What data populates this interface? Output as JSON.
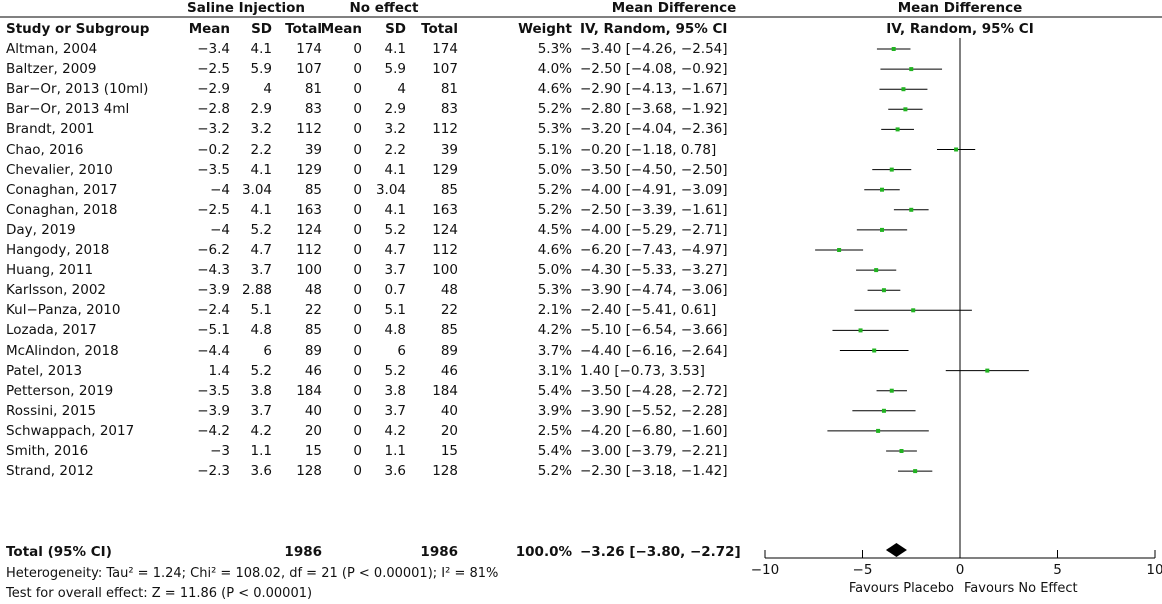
{
  "header": {
    "group_experimental": "Saline Injection",
    "group_control": "No effect",
    "col_md": "Mean Difference",
    "col_plot": "Mean Difference",
    "col_study": "Study or Subgroup",
    "col_mean": "Mean",
    "col_sd": "SD",
    "col_total": "Total",
    "col_mean2": "Mean",
    "col_sd2": "SD",
    "col_total2": "Total",
    "col_weight": "Weight",
    "col_md_method": "IV, Random, 95% CI",
    "col_plot_method": "IV, Random, 95% CI"
  },
  "studies": [
    {
      "study": "Altman, 2004",
      "e_mean": "−3.4",
      "e_sd": "4.1",
      "e_total": "174",
      "c_mean": "0",
      "c_sd": "4.1",
      "c_total": "174",
      "weight": "5.3%",
      "md_text": "−3.40 [−4.26, −2.54]"
    },
    {
      "study": "Baltzer, 2009",
      "e_mean": "−2.5",
      "e_sd": "5.9",
      "e_total": "107",
      "c_mean": "0",
      "c_sd": "5.9",
      "c_total": "107",
      "weight": "4.0%",
      "md_text": "−2.50 [−4.08, −0.92]"
    },
    {
      "study": "Bar−Or, 2013 (10ml)",
      "e_mean": "−2.9",
      "e_sd": "4",
      "e_total": "81",
      "c_mean": "0",
      "c_sd": "4",
      "c_total": "81",
      "weight": "4.6%",
      "md_text": "−2.90 [−4.13, −1.67]"
    },
    {
      "study": "Bar−Or, 2013 4ml",
      "e_mean": "−2.8",
      "e_sd": "2.9",
      "e_total": "83",
      "c_mean": "0",
      "c_sd": "2.9",
      "c_total": "83",
      "weight": "5.2%",
      "md_text": "−2.80 [−3.68, −1.92]"
    },
    {
      "study": "Brandt, 2001",
      "e_mean": "−3.2",
      "e_sd": "3.2",
      "e_total": "112",
      "c_mean": "0",
      "c_sd": "3.2",
      "c_total": "112",
      "weight": "5.3%",
      "md_text": "−3.20 [−4.04, −2.36]"
    },
    {
      "study": "Chao, 2016",
      "e_mean": "−0.2",
      "e_sd": "2.2",
      "e_total": "39",
      "c_mean": "0",
      "c_sd": "2.2",
      "c_total": "39",
      "weight": "5.1%",
      "md_text": "−0.20 [−1.18, 0.78]"
    },
    {
      "study": "Chevalier, 2010",
      "e_mean": "−3.5",
      "e_sd": "4.1",
      "e_total": "129",
      "c_mean": "0",
      "c_sd": "4.1",
      "c_total": "129",
      "weight": "5.0%",
      "md_text": "−3.50 [−4.50, −2.50]"
    },
    {
      "study": "Conaghan, 2017",
      "e_mean": "−4",
      "e_sd": "3.04",
      "e_total": "85",
      "c_mean": "0",
      "c_sd": "3.04",
      "c_total": "85",
      "weight": "5.2%",
      "md_text": "−4.00 [−4.91, −3.09]"
    },
    {
      "study": "Conaghan, 2018",
      "e_mean": "−2.5",
      "e_sd": "4.1",
      "e_total": "163",
      "c_mean": "0",
      "c_sd": "4.1",
      "c_total": "163",
      "weight": "5.2%",
      "md_text": "−2.50 [−3.39, −1.61]"
    },
    {
      "study": "Day, 2019",
      "e_mean": "−4",
      "e_sd": "5.2",
      "e_total": "124",
      "c_mean": "0",
      "c_sd": "5.2",
      "c_total": "124",
      "weight": "4.5%",
      "md_text": "−4.00 [−5.29, −2.71]"
    },
    {
      "study": "Hangody, 2018",
      "e_mean": "−6.2",
      "e_sd": "4.7",
      "e_total": "112",
      "c_mean": "0",
      "c_sd": "4.7",
      "c_total": "112",
      "weight": "4.6%",
      "md_text": "−6.20 [−7.43, −4.97]"
    },
    {
      "study": "Huang, 2011",
      "e_mean": "−4.3",
      "e_sd": "3.7",
      "e_total": "100",
      "c_mean": "0",
      "c_sd": "3.7",
      "c_total": "100",
      "weight": "5.0%",
      "md_text": "−4.30 [−5.33, −3.27]"
    },
    {
      "study": "Karlsson, 2002",
      "e_mean": "−3.9",
      "e_sd": "2.88",
      "e_total": "48",
      "c_mean": "0",
      "c_sd": "0.7",
      "c_total": "48",
      "weight": "5.3%",
      "md_text": "−3.90 [−4.74, −3.06]"
    },
    {
      "study": "Kul−Panza, 2010",
      "e_mean": "−2.4",
      "e_sd": "5.1",
      "e_total": "22",
      "c_mean": "0",
      "c_sd": "5.1",
      "c_total": "22",
      "weight": "2.1%",
      "md_text": "−2.40 [−5.41, 0.61]"
    },
    {
      "study": "Lozada, 2017",
      "e_mean": "−5.1",
      "e_sd": "4.8",
      "e_total": "85",
      "c_mean": "0",
      "c_sd": "4.8",
      "c_total": "85",
      "weight": "4.2%",
      "md_text": "−5.10 [−6.54, −3.66]"
    },
    {
      "study": "McAlindon, 2018",
      "e_mean": "−4.4",
      "e_sd": "6",
      "e_total": "89",
      "c_mean": "0",
      "c_sd": "6",
      "c_total": "89",
      "weight": "3.7%",
      "md_text": "−4.40 [−6.16, −2.64]"
    },
    {
      "study": "Patel, 2013",
      "e_mean": "1.4",
      "e_sd": "5.2",
      "e_total": "46",
      "c_mean": "0",
      "c_sd": "5.2",
      "c_total": "46",
      "weight": "3.1%",
      "md_text": "1.40 [−0.73, 3.53]"
    },
    {
      "study": "Petterson, 2019",
      "e_mean": "−3.5",
      "e_sd": "3.8",
      "e_total": "184",
      "c_mean": "0",
      "c_sd": "3.8",
      "c_total": "184",
      "weight": "5.4%",
      "md_text": "−3.50 [−4.28, −2.72]"
    },
    {
      "study": "Rossini, 2015",
      "e_mean": "−3.9",
      "e_sd": "3.7",
      "e_total": "40",
      "c_mean": "0",
      "c_sd": "3.7",
      "c_total": "40",
      "weight": "3.9%",
      "md_text": "−3.90 [−5.52, −2.28]"
    },
    {
      "study": "Schwappach, 2017",
      "e_mean": "−4.2",
      "e_sd": "4.2",
      "e_total": "20",
      "c_mean": "0",
      "c_sd": "4.2",
      "c_total": "20",
      "weight": "2.5%",
      "md_text": "−4.20 [−6.80, −1.60]"
    },
    {
      "study": "Smith, 2016",
      "e_mean": "−3",
      "e_sd": "1.1",
      "e_total": "15",
      "c_mean": "0",
      "c_sd": "1.1",
      "c_total": "15",
      "weight": "5.4%",
      "md_text": "−3.00 [−3.79, −2.21]"
    },
    {
      "study": "Strand, 2012",
      "e_mean": "−2.3",
      "e_sd": "3.6",
      "e_total": "128",
      "c_mean": "0",
      "c_sd": "3.6",
      "c_total": "128",
      "weight": "5.2%",
      "md_text": "−2.30 [−3.18, −1.42]"
    }
  ],
  "total": {
    "label": "Total (95% CI)",
    "e_total": "1986",
    "c_total": "1986",
    "weight": "100.0%",
    "md_text": "−3.26 [−3.80, −2.72]"
  },
  "footer": {
    "heterogeneity": "Heterogeneity: Tau² = 1.24; Chi² = 108.02, df = 21 (P < 0.00001); I² = 81%",
    "overall": "Test for overall effect: Z = 11.86 (P < 0.00001)"
  },
  "chart_data": {
    "type": "scatter",
    "x_range": [
      -10,
      10
    ],
    "ticks": [
      -10,
      -5,
      0,
      5,
      10
    ],
    "tick_labels": [
      "−10",
      "−5",
      "0",
      "5",
      "10"
    ],
    "favours_left": "Favours Placebo",
    "favours_right": "Favours No Effect",
    "point_color": "#21b321",
    "points": [
      {
        "md": -3.4,
        "lo": -4.26,
        "hi": -2.54
      },
      {
        "md": -2.5,
        "lo": -4.08,
        "hi": -0.92
      },
      {
        "md": -2.9,
        "lo": -4.13,
        "hi": -1.67
      },
      {
        "md": -2.8,
        "lo": -3.68,
        "hi": -1.92
      },
      {
        "md": -3.2,
        "lo": -4.04,
        "hi": -2.36
      },
      {
        "md": -0.2,
        "lo": -1.18,
        "hi": 0.78
      },
      {
        "md": -3.5,
        "lo": -4.5,
        "hi": -2.5
      },
      {
        "md": -4.0,
        "lo": -4.91,
        "hi": -3.09
      },
      {
        "md": -2.5,
        "lo": -3.39,
        "hi": -1.61
      },
      {
        "md": -4.0,
        "lo": -5.29,
        "hi": -2.71
      },
      {
        "md": -6.2,
        "lo": -7.43,
        "hi": -4.97
      },
      {
        "md": -4.3,
        "lo": -5.33,
        "hi": -3.27
      },
      {
        "md": -3.9,
        "lo": -4.74,
        "hi": -3.06
      },
      {
        "md": -2.4,
        "lo": -5.41,
        "hi": 0.61
      },
      {
        "md": -5.1,
        "lo": -6.54,
        "hi": -3.66
      },
      {
        "md": -4.4,
        "lo": -6.16,
        "hi": -2.64
      },
      {
        "md": 1.4,
        "lo": -0.73,
        "hi": 3.53
      },
      {
        "md": -3.5,
        "lo": -4.28,
        "hi": -2.72
      },
      {
        "md": -3.9,
        "lo": -5.52,
        "hi": -2.28
      },
      {
        "md": -4.2,
        "lo": -6.8,
        "hi": -1.6
      },
      {
        "md": -3.0,
        "lo": -3.79,
        "hi": -2.21
      },
      {
        "md": -2.3,
        "lo": -3.18,
        "hi": -1.42
      }
    ],
    "pooled": {
      "md": -3.26,
      "lo": -3.8,
      "hi": -2.72
    }
  }
}
